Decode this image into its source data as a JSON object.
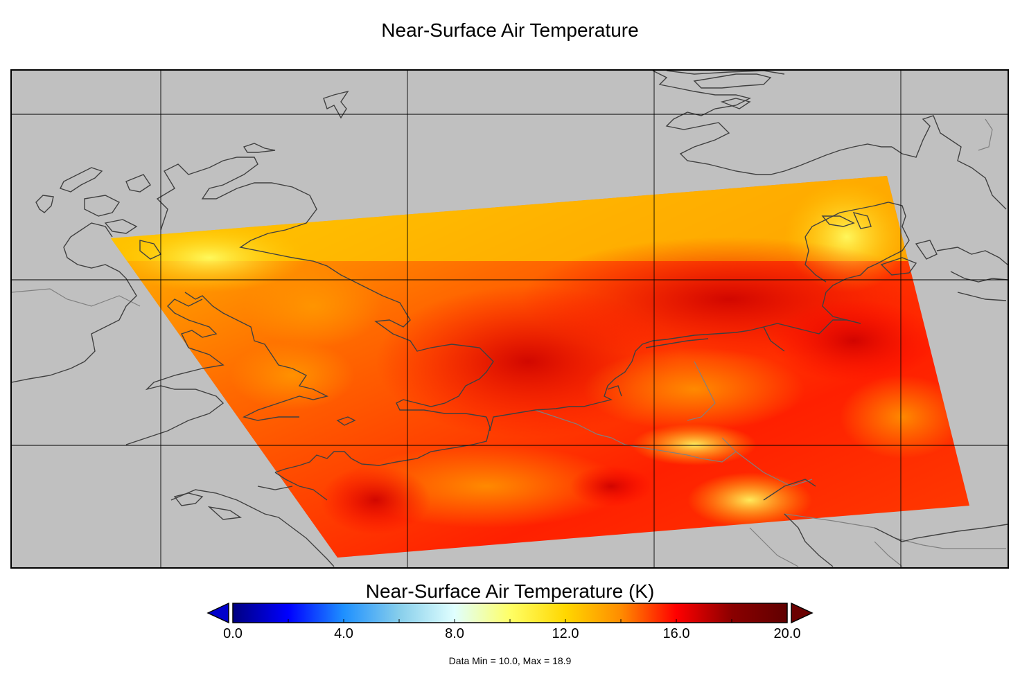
{
  "title": "Near-Surface Air Temperature",
  "colorbar": {
    "title": "Near-Surface Air Temperature (K)",
    "ticks": [
      "0.0",
      "4.0",
      "8.0",
      "12.0",
      "16.0",
      "20.0"
    ],
    "range": [
      0,
      20
    ],
    "stops": [
      "#000080",
      "#0000ff",
      "#1e90ff",
      "#87ceeb",
      "#e0ffff",
      "#ffff66",
      "#ffd700",
      "#ff8c00",
      "#ff0000",
      "#8b0000",
      "#600000"
    ]
  },
  "stats": "Data Min = 10.0, Max = 18.9",
  "colors": {
    "ocean": "#c0c0c0",
    "coast": "#404040",
    "border": "#808080",
    "grid": "#000000"
  }
}
